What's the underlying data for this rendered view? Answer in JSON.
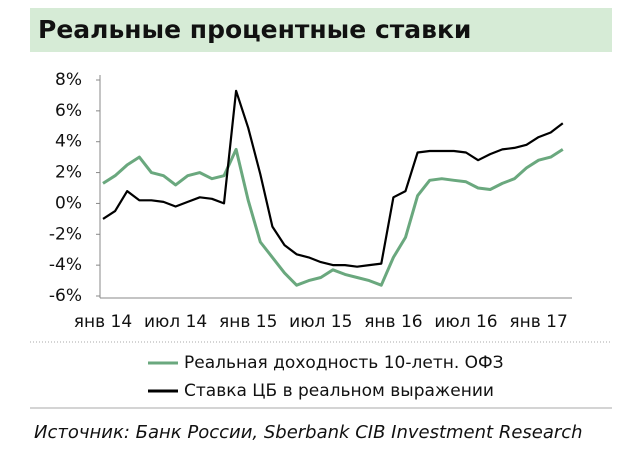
{
  "chart_data": {
    "type": "line",
    "title": "Реальные процентные ставки",
    "source": "Источник: Банк России, Sberbank CIB Investment Research",
    "categories": [
      "янв 14",
      null,
      null,
      null,
      null,
      null,
      "июл 14",
      null,
      null,
      null,
      null,
      null,
      "янв 15",
      null,
      null,
      null,
      null,
      null,
      "июл 15",
      null,
      null,
      null,
      null,
      null,
      "янв 16",
      null,
      null,
      null,
      null,
      null,
      "июл 16",
      null,
      null,
      null,
      null,
      null,
      "янв 17",
      null,
      null
    ],
    "series": [
      {
        "name": "Реальная доходность 10-летн. ОФЗ",
        "color": "#6aa87e",
        "values": [
          1.3,
          1.8,
          2.5,
          3.0,
          2.0,
          1.8,
          1.2,
          1.8,
          2.0,
          1.6,
          1.8,
          3.5,
          0.2,
          -2.5,
          -3.5,
          -4.5,
          -5.3,
          -5.0,
          -4.8,
          -4.3,
          -4.6,
          -4.8,
          -5.0,
          -5.3,
          -3.5,
          -2.2,
          0.5,
          1.5,
          1.6,
          1.5,
          1.4,
          1.0,
          0.9,
          1.3,
          1.6,
          2.3,
          2.8,
          3.0,
          3.5
        ]
      },
      {
        "name": "Ставка ЦБ в реальном выражении",
        "color": "#000000",
        "values": [
          -1.0,
          -0.5,
          0.8,
          0.2,
          0.2,
          0.1,
          -0.2,
          0.1,
          0.4,
          0.3,
          0.0,
          7.3,
          4.9,
          1.9,
          -1.5,
          -2.7,
          -3.3,
          -3.5,
          -3.8,
          -4.0,
          -4.0,
          -4.1,
          -4.0,
          -3.9,
          0.4,
          0.8,
          3.3,
          3.4,
          3.4,
          3.4,
          3.3,
          2.8,
          3.2,
          3.5,
          3.6,
          3.8,
          4.3,
          4.6,
          5.2
        ]
      }
    ],
    "ylim": [
      -6,
      8
    ],
    "yticks": [
      {
        "value": -6,
        "label": "-6%"
      },
      {
        "value": -4,
        "label": "-4%"
      },
      {
        "value": -2,
        "label": "-2%"
      },
      {
        "value": 0,
        "label": "0%"
      },
      {
        "value": 2,
        "label": "2%"
      },
      {
        "value": 4,
        "label": "4%"
      },
      {
        "value": 6,
        "label": "6%"
      },
      {
        "value": 8,
        "label": "8%"
      }
    ]
  }
}
